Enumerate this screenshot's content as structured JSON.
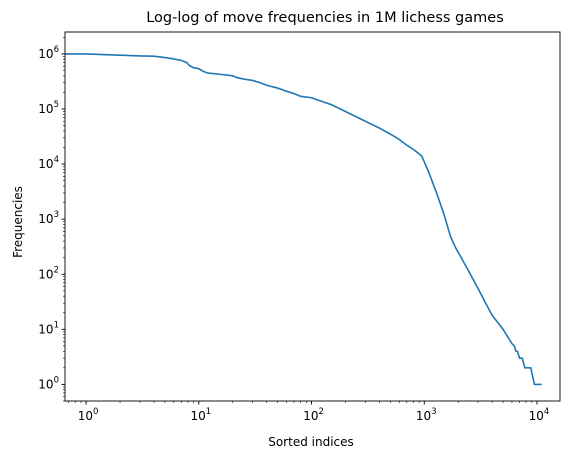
{
  "chart_data": {
    "type": "line",
    "title": "Log-log of move frequencies in 1M lichess games",
    "xlabel": "Sorted indices",
    "ylabel": "Frequencies",
    "xscale": "log",
    "yscale": "log",
    "xlim": [
      0.65,
      16000
    ],
    "ylim": [
      0.5,
      2500000
    ],
    "xticks": [
      {
        "value": 1,
        "base": "10",
        "exp": "0"
      },
      {
        "value": 10,
        "base": "10",
        "exp": "1"
      },
      {
        "value": 100,
        "base": "10",
        "exp": "2"
      },
      {
        "value": 1000,
        "base": "10",
        "exp": "3"
      },
      {
        "value": 10000,
        "base": "10",
        "exp": "4"
      }
    ],
    "yticks": [
      {
        "value": 1,
        "base": "10",
        "exp": "0"
      },
      {
        "value": 10,
        "base": "10",
        "exp": "1"
      },
      {
        "value": 100,
        "base": "10",
        "exp": "2"
      },
      {
        "value": 1000,
        "base": "10",
        "exp": "3"
      },
      {
        "value": 10000,
        "base": "10",
        "exp": "4"
      },
      {
        "value": 100000,
        "base": "10",
        "exp": "5"
      },
      {
        "value": 1000000,
        "base": "10",
        "exp": "6"
      }
    ],
    "grid": false,
    "legend": "none",
    "series_color": "#1f77b4",
    "series": [
      {
        "x": [
          0.65,
          1,
          2,
          3,
          4,
          5,
          6,
          7,
          7.8,
          8.2,
          9,
          10,
          11,
          12,
          15,
          20,
          22,
          25,
          30,
          35,
          40,
          50,
          60,
          70,
          80,
          100,
          120,
          150,
          200,
          300,
          400,
          500,
          600,
          700,
          800,
          950,
          1100,
          1300,
          1500,
          1700,
          1900,
          2100,
          2500,
          3000,
          3500,
          4000,
          5000,
          6000,
          6300,
          6500,
          6700,
          7000,
          7400,
          7800,
          8200,
          8800,
          9500,
          10200,
          11000
        ],
        "y": [
          1000000,
          1000000,
          950000,
          920000,
          910000,
          860000,
          810000,
          760000,
          700000,
          620000,
          560000,
          540000,
          480000,
          450000,
          430000,
          400000,
          370000,
          350000,
          330000,
          300000,
          270000,
          240000,
          210000,
          190000,
          170000,
          160000,
          140000,
          120000,
          90000,
          60000,
          45000,
          35000,
          28000,
          22000,
          18500,
          14000,
          7000,
          2800,
          1200,
          500,
          300,
          210,
          110,
          55,
          30,
          18,
          10,
          5.5,
          5,
          4,
          4,
          3,
          3,
          2,
          2,
          2,
          1,
          1,
          1
        ]
      }
    ]
  }
}
